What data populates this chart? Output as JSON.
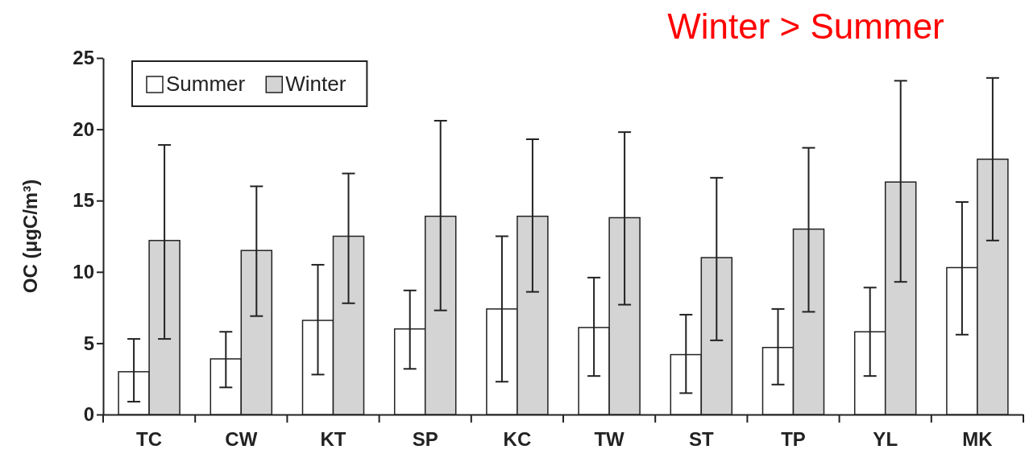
{
  "chart_data": {
    "type": "bar",
    "ylabel": "OC (μgC/m³)",
    "categories": [
      "TC",
      "CW",
      "KT",
      "SP",
      "KC",
      "TW",
      "ST",
      "TP",
      "YL",
      "MK"
    ],
    "series": [
      {
        "name": "Summer",
        "color": "#ffffff",
        "values": [
          3.0,
          3.9,
          6.6,
          6.0,
          7.4,
          6.1,
          4.2,
          4.7,
          5.8,
          10.3
        ],
        "errors": [
          [
            0.9,
            5.3
          ],
          [
            1.9,
            5.8
          ],
          [
            2.8,
            10.5
          ],
          [
            3.2,
            8.7
          ],
          [
            2.3,
            12.5
          ],
          [
            2.7,
            9.6
          ],
          [
            1.5,
            7.0
          ],
          [
            2.1,
            7.4
          ],
          [
            2.7,
            8.9
          ],
          [
            5.6,
            14.9
          ]
        ]
      },
      {
        "name": "Winter",
        "color": "#d4d4d4",
        "values": [
          12.2,
          11.5,
          12.5,
          13.9,
          13.9,
          13.8,
          11.0,
          13.0,
          16.3,
          17.9
        ],
        "errors": [
          [
            5.3,
            18.9
          ],
          [
            6.9,
            16.0
          ],
          [
            7.8,
            16.9
          ],
          [
            7.3,
            20.6
          ],
          [
            8.6,
            19.3
          ],
          [
            7.7,
            19.8
          ],
          [
            5.2,
            16.6
          ],
          [
            7.2,
            18.7
          ],
          [
            9.3,
            23.4
          ],
          [
            12.2,
            23.6
          ]
        ]
      }
    ],
    "ylim": [
      0,
      25
    ],
    "yticks": [
      0,
      5,
      10,
      15,
      20,
      25
    ],
    "grid": false,
    "legend": "top left",
    "annotations": [
      "Winter > Summer"
    ]
  }
}
